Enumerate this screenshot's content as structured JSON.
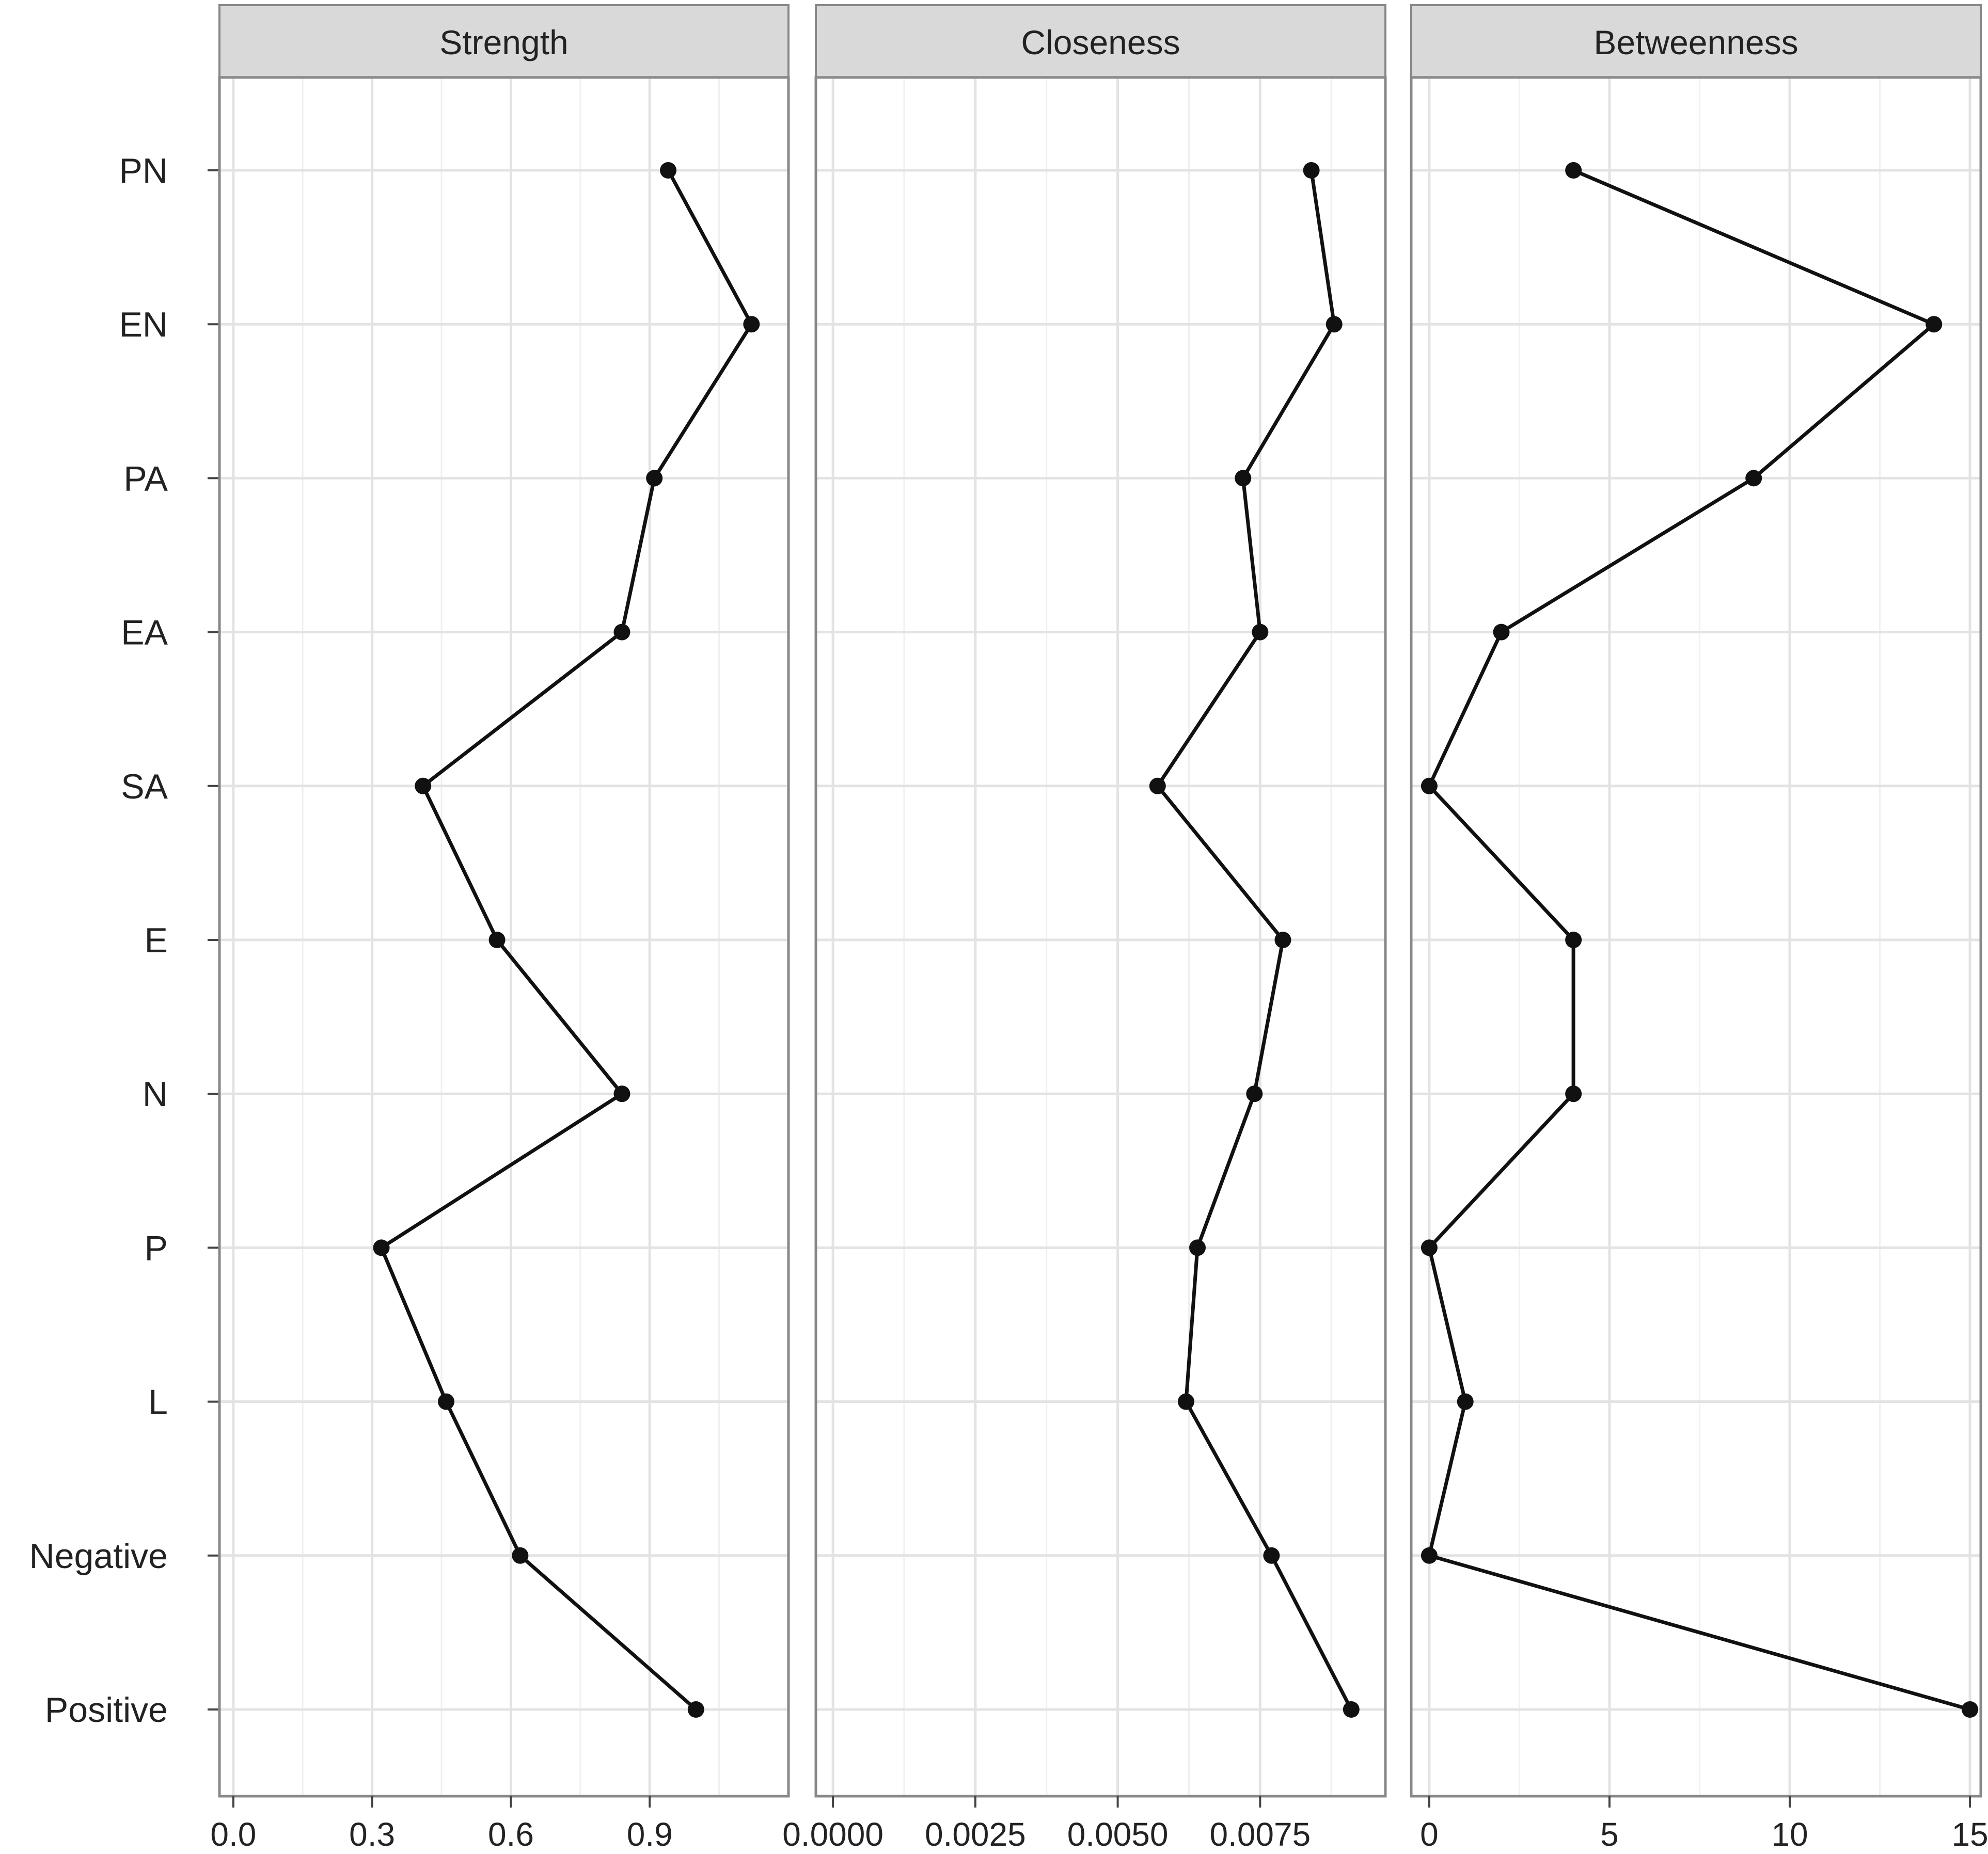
{
  "chart_data": {
    "type": "line",
    "orientation": "horizontal-facets",
    "categories": [
      "PN",
      "EN",
      "PA",
      "EA",
      "SA",
      "E",
      "N",
      "P",
      "L",
      "Negative",
      "Positive"
    ],
    "panels": [
      {
        "title": "Strength",
        "xlim": [
          -0.03,
          1.2
        ],
        "ticks": [
          0,
          0.3,
          0.6,
          0.9
        ],
        "tick_labels": [
          "0.0",
          "0.3",
          "0.6",
          "0.9"
        ],
        "values": [
          0.94,
          1.12,
          0.91,
          0.84,
          0.41,
          0.57,
          0.84,
          0.32,
          0.46,
          0.62,
          1.0
        ]
      },
      {
        "title": "Closeness",
        "xlim": [
          -0.0003,
          0.0097
        ],
        "ticks": [
          0,
          0.0025,
          0.005,
          0.0075
        ],
        "tick_labels": [
          "0.0000",
          "0.0025",
          "0.0050",
          "0.0075"
        ],
        "values": [
          0.0084,
          0.0088,
          0.0072,
          0.0075,
          0.0057,
          0.0079,
          0.0074,
          0.0064,
          0.0062,
          0.0077,
          0.0091
        ]
      },
      {
        "title": "Betweenness",
        "xlim": [
          -0.5,
          15.3
        ],
        "ticks": [
          0,
          5,
          10,
          15
        ],
        "tick_labels": [
          "0",
          "5",
          "10",
          "15"
        ],
        "values": [
          4,
          14,
          9,
          2,
          0,
          4,
          4,
          0,
          1,
          0,
          15
        ]
      }
    ],
    "grid": true,
    "line_color": "#111111",
    "point_color": "#111111",
    "strip_color": "#d9d9d9",
    "panel_border_color": "#888888"
  }
}
